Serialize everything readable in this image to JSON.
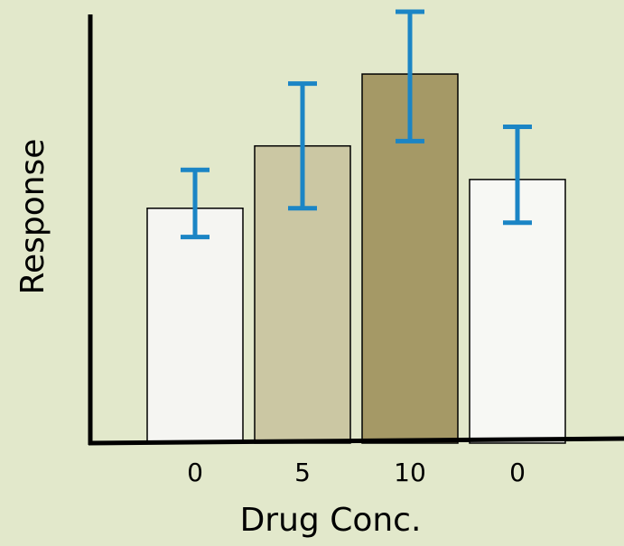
{
  "chart_data": {
    "type": "bar",
    "title": "",
    "xlabel": "Drug Conc.",
    "ylabel": "Response",
    "categories": [
      "0",
      "5",
      "10",
      "0"
    ],
    "values": [
      49,
      62,
      77,
      55
    ],
    "error": [
      [
        43,
        57
      ],
      [
        49,
        75
      ],
      [
        63,
        90
      ],
      [
        46,
        66
      ]
    ],
    "ylim": [
      0,
      90
    ],
    "grid": false,
    "legend": "none",
    "colors": {
      "background": "#e2e8cb",
      "bars": [
        "#f5f5f2",
        "#cbc7a3",
        "#a59966",
        "#f7f8f4"
      ],
      "bar_border": "#000000",
      "error_bars": "#1b85c5",
      "axis": "#000000"
    }
  }
}
